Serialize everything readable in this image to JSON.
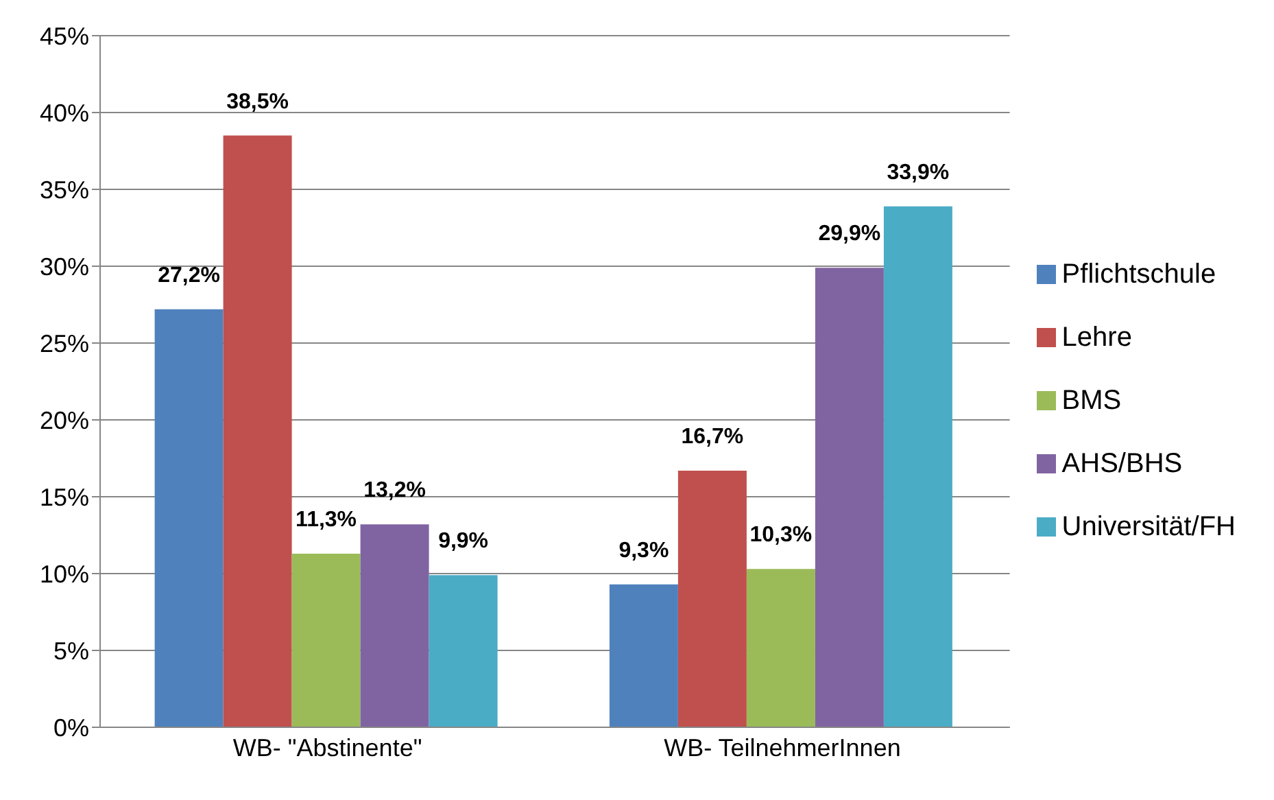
{
  "chart_data": {
    "type": "bar",
    "categories": [
      "WB- \"Abstinente\"",
      "WB- TeilnehmerInnen"
    ],
    "series": [
      {
        "name": "Pflichtschule",
        "color": "#4f81bd",
        "values": [
          27.2,
          9.3
        ],
        "value_labels": [
          "27,2%",
          "9,3%"
        ]
      },
      {
        "name": "Lehre",
        "color": "#c0504d",
        "values": [
          38.5,
          16.7
        ],
        "value_labels": [
          "38,5%",
          "16,7%"
        ]
      },
      {
        "name": "BMS",
        "color": "#9bbb59",
        "values": [
          11.3,
          10.3
        ],
        "value_labels": [
          "11,3%",
          "10,3%"
        ]
      },
      {
        "name": "AHS/BHS",
        "color": "#8064a2",
        "values": [
          13.2,
          29.9
        ],
        "value_labels": [
          "13,2%",
          "29,9%"
        ]
      },
      {
        "name": "Universität/FH",
        "color": "#4bacc6",
        "values": [
          9.9,
          33.9
        ],
        "value_labels": [
          "9,9%",
          "33,9%"
        ]
      }
    ],
    "ylim": [
      0,
      45
    ],
    "yticks": [
      {
        "value": 0,
        "label": "0%"
      },
      {
        "value": 5,
        "label": "5%"
      },
      {
        "value": 10,
        "label": "10%"
      },
      {
        "value": 15,
        "label": "15%"
      },
      {
        "value": 20,
        "label": "20%"
      },
      {
        "value": 25,
        "label": "25%"
      },
      {
        "value": 30,
        "label": "30%"
      },
      {
        "value": 35,
        "label": "35%"
      },
      {
        "value": 40,
        "label": "40%"
      },
      {
        "value": 45,
        "label": "45%"
      }
    ],
    "grid": "y",
    "legend": "right"
  }
}
